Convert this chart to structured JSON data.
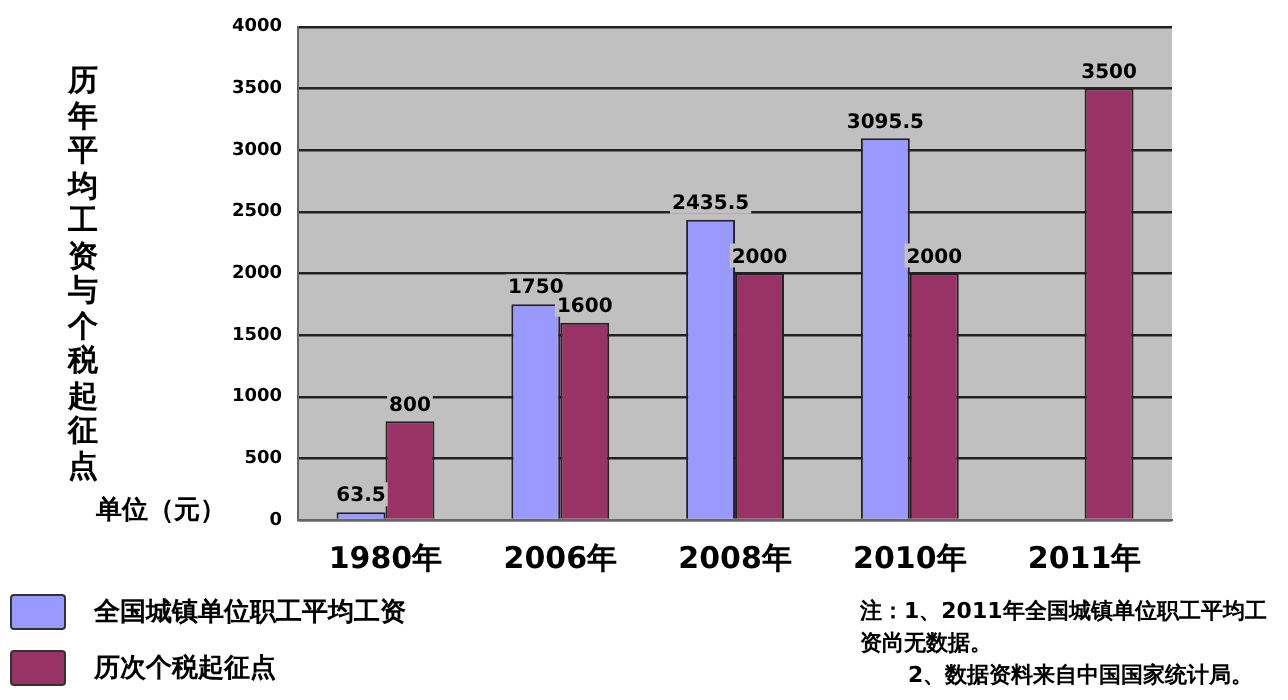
{
  "chart_data": {
    "type": "bar",
    "ylabel": "历年平均工资与个税起征点",
    "categories": [
      "1980年",
      "2006年",
      "2008年",
      "2010年",
      "2011年"
    ],
    "series": [
      {
        "name": "全国城镇单位职工平均工资",
        "color": "#9999ff",
        "values": [
          63.5,
          1750,
          2435.5,
          3095.5,
          null
        ]
      },
      {
        "name": "历次个税起征点",
        "color": "#993366",
        "values": [
          800,
          1600,
          2000,
          2000,
          3500
        ]
      }
    ],
    "ylim": [
      0,
      4000
    ],
    "yticks": [
      0,
      500,
      1000,
      1500,
      2000,
      2500,
      3000,
      3500,
      4000
    ],
    "grid": "y",
    "legend": "bottom left",
    "data_labels": true,
    "annotations": [
      "单位（元）",
      "注：1、2011年全国城镇单位职工平均工资尚无数据。",
      "2、数据资料来自中国国家统计局。"
    ]
  }
}
